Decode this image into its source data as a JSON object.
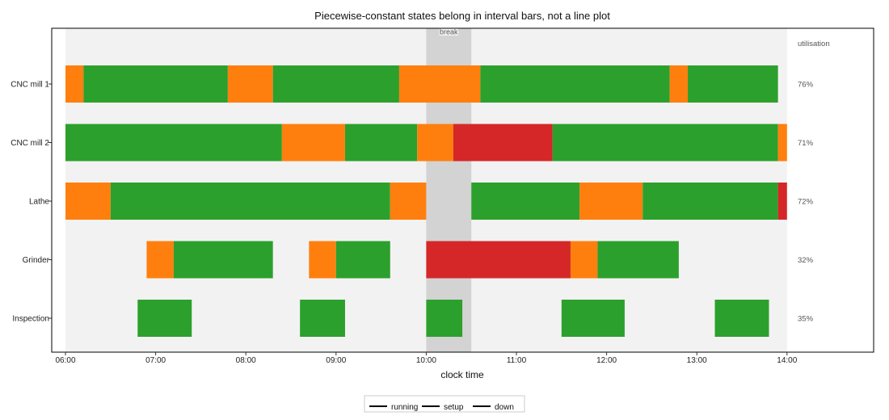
{
  "chart_data": {
    "type": "interval",
    "title": "Piecewise-constant states belong in interval bars, not a line plot",
    "xlabel": "clock time",
    "ylabel": "",
    "x_range": [
      "06:00",
      "15:00"
    ],
    "x_ticks": [
      "06:00",
      "07:00",
      "08:00",
      "09:00",
      "10:00",
      "11:00",
      "12:00",
      "13:00",
      "14:00"
    ],
    "shift_window": [
      "06:00",
      "14:00"
    ],
    "break": {
      "label": "break",
      "start": "10:00",
      "end": "10:30"
    },
    "side_header": "utilisation",
    "states": [
      {
        "name": "running",
        "color": "#2ca02c"
      },
      {
        "name": "setup",
        "color": "#ff7f0e"
      },
      {
        "name": "down",
        "color": "#d62728"
      }
    ],
    "machines": [
      {
        "name": "CNC mill 1",
        "utilisation": "76%",
        "segments": [
          {
            "state": "setup",
            "start": "06:00",
            "end": "06:12"
          },
          {
            "state": "running",
            "start": "06:12",
            "end": "07:48"
          },
          {
            "state": "setup",
            "start": "07:48",
            "end": "08:18"
          },
          {
            "state": "running",
            "start": "08:18",
            "end": "09:42"
          },
          {
            "state": "setup",
            "start": "09:42",
            "end": "10:36"
          },
          {
            "state": "running",
            "start": "10:36",
            "end": "12:42"
          },
          {
            "state": "setup",
            "start": "12:42",
            "end": "12:54"
          },
          {
            "state": "running",
            "start": "12:54",
            "end": "13:54"
          }
        ]
      },
      {
        "name": "CNC mill 2",
        "utilisation": "71%",
        "segments": [
          {
            "state": "running",
            "start": "06:00",
            "end": "08:24"
          },
          {
            "state": "setup",
            "start": "08:24",
            "end": "09:06"
          },
          {
            "state": "running",
            "start": "09:06",
            "end": "09:54"
          },
          {
            "state": "setup",
            "start": "09:54",
            "end": "10:18"
          },
          {
            "state": "down",
            "start": "10:18",
            "end": "11:24"
          },
          {
            "state": "running",
            "start": "11:24",
            "end": "13:54"
          },
          {
            "state": "setup",
            "start": "13:54",
            "end": "14:00"
          }
        ]
      },
      {
        "name": "Lathe",
        "utilisation": "72%",
        "segments": [
          {
            "state": "setup",
            "start": "06:00",
            "end": "06:30"
          },
          {
            "state": "running",
            "start": "06:30",
            "end": "09:36"
          },
          {
            "state": "setup",
            "start": "09:36",
            "end": "10:00"
          },
          {
            "state": "running",
            "start": "10:30",
            "end": "11:42"
          },
          {
            "state": "setup",
            "start": "11:42",
            "end": "12:24"
          },
          {
            "state": "running",
            "start": "12:24",
            "end": "13:54"
          },
          {
            "state": "down",
            "start": "13:54",
            "end": "14:00"
          }
        ]
      },
      {
        "name": "Grinder",
        "utilisation": "32%",
        "segments": [
          {
            "state": "setup",
            "start": "06:54",
            "end": "07:12"
          },
          {
            "state": "running",
            "start": "07:12",
            "end": "08:18"
          },
          {
            "state": "setup",
            "start": "08:42",
            "end": "09:00"
          },
          {
            "state": "running",
            "start": "09:00",
            "end": "09:36"
          },
          {
            "state": "down",
            "start": "10:00",
            "end": "11:36"
          },
          {
            "state": "setup",
            "start": "11:36",
            "end": "11:54"
          },
          {
            "state": "running",
            "start": "11:54",
            "end": "12:48"
          }
        ]
      },
      {
        "name": "Inspection",
        "utilisation": "35%",
        "segments": [
          {
            "state": "running",
            "start": "06:48",
            "end": "07:24"
          },
          {
            "state": "running",
            "start": "08:36",
            "end": "09:06"
          },
          {
            "state": "running",
            "start": "10:00",
            "end": "10:24"
          },
          {
            "state": "running",
            "start": "11:30",
            "end": "12:12"
          },
          {
            "state": "running",
            "start": "13:12",
            "end": "13:48"
          }
        ]
      }
    ],
    "grid": false,
    "legend_position": "bottom"
  }
}
